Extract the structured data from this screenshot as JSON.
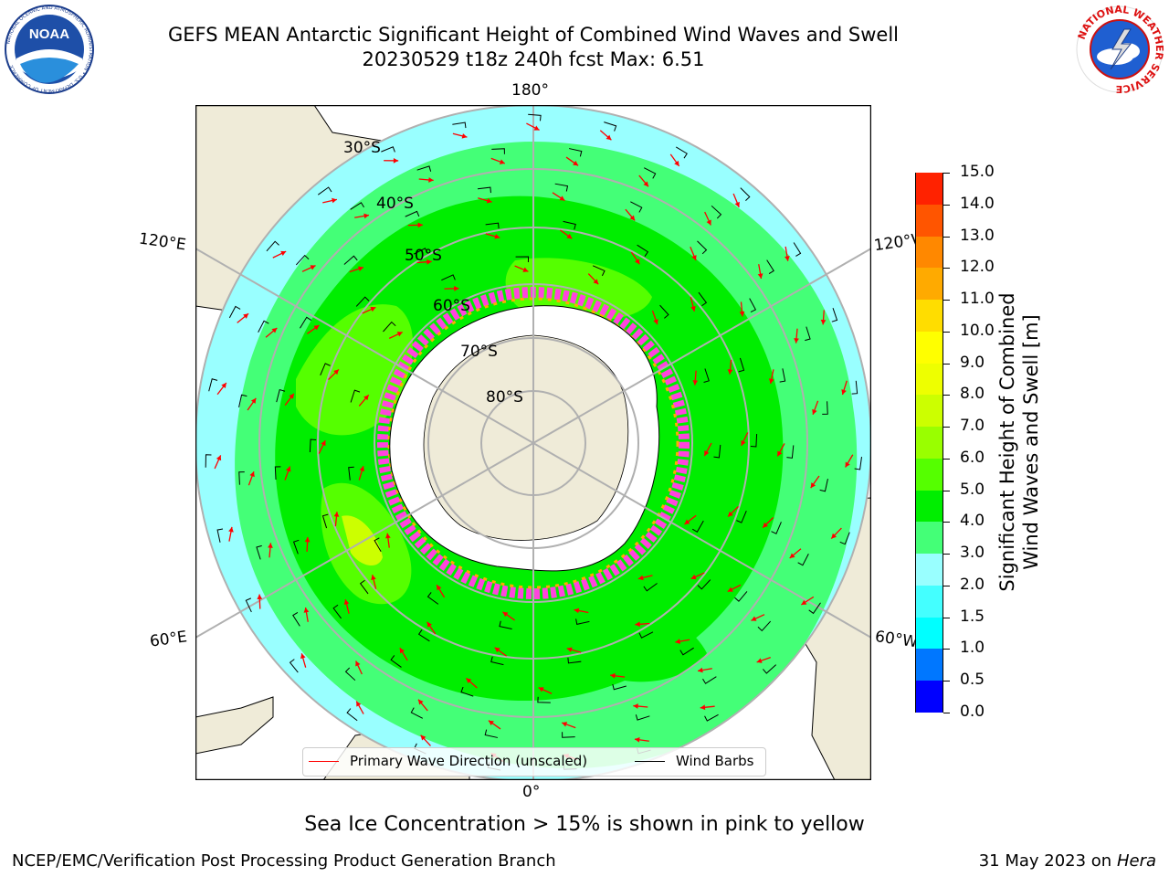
{
  "header": {
    "title_line1": "GEFS MEAN Antarctic Significant Height of Combined Wind Waves and Swell",
    "title_line2": "20230529 t18z 240h fcst   Max: 6.51"
  },
  "logos": {
    "noaa": {
      "icon": "noaa-logo",
      "text": "NOAA",
      "ring_text": "NATIONAL OCEANIC AND ATMOSPHERIC ADMINISTRATION • U.S. DEPARTMENT OF COMMERCE"
    },
    "nws": {
      "icon": "nws-logo",
      "ring_text": "NATIONAL WEATHER SERVICE"
    }
  },
  "map": {
    "projection": "south-polar-stereographic",
    "lon_labels": {
      "top": "180°",
      "bottom": "0°",
      "upper_left": "120°E",
      "lower_left": "60°E",
      "upper_right": "120°W",
      "lower_right": "60°W"
    },
    "lat_labels": [
      "30°S",
      "40°S",
      "50°S",
      "60°S",
      "70°S",
      "80°S"
    ],
    "colors": {
      "land": "#efebd8",
      "ice_sheet": "#ffffff",
      "grid": "#b0b0b0",
      "sea_ice_edge": "#ff44dd"
    }
  },
  "legend": {
    "wave_label": "Primary Wave Direction (unscaled)",
    "wind_label": "Wind Barbs",
    "wave_color": "#ff0000",
    "wind_color": "#000000"
  },
  "colorbar": {
    "label_line1": "Significant Height of Combined",
    "label_line2": "Wind Waves and Swell [m]",
    "ticks": [
      "0.0",
      "0.5",
      "1.0",
      "1.5",
      "2.0",
      "3.0",
      "4.0",
      "5.0",
      "6.0",
      "7.0",
      "8.0",
      "9.0",
      "10.0",
      "11.0",
      "12.0",
      "13.0",
      "14.0",
      "15.0"
    ],
    "colors": [
      "#0000ff",
      "#0077ff",
      "#00ffff",
      "#44ffff",
      "#99ffff",
      "#44ff77",
      "#00ee00",
      "#55ff00",
      "#99ff00",
      "#ccff00",
      "#eeff00",
      "#ffff00",
      "#ffdd00",
      "#ffaa00",
      "#ff8800",
      "#ff5500",
      "#ff2200"
    ]
  },
  "footer": {
    "sea_ice_note": "Sea Ice Concentration > 15% is shown in pink to yellow",
    "credit": "NCEP/EMC/Verification Post Processing Product Generation Branch",
    "date": "31 May 2023 on",
    "host": "Hera"
  }
}
